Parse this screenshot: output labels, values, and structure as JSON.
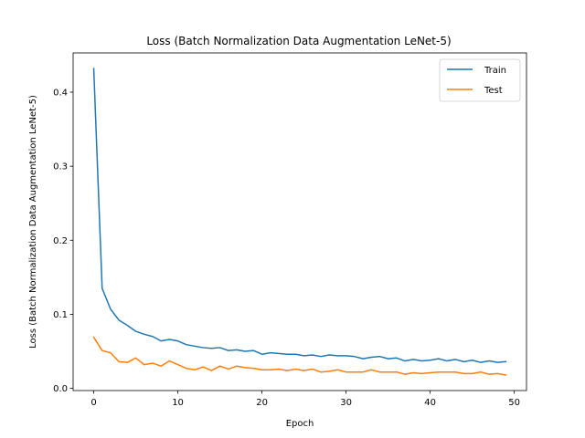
{
  "chart_data": {
    "type": "line",
    "title": "Loss (Batch Normalization Data Augmentation LeNet-5)",
    "xlabel": "Epoch",
    "ylabel": "Loss (Batch Normalization Data Augmentation LeNet-5)",
    "xlim": [
      -2.45,
      51.45
    ],
    "ylim": [
      -0.003,
      0.453
    ],
    "xticks": [
      0,
      10,
      20,
      30,
      40,
      50
    ],
    "yticks": [
      0.0,
      0.1,
      0.2,
      0.3,
      0.4
    ],
    "grid": false,
    "legend_position": "top-right",
    "x": [
      0,
      1,
      2,
      3,
      4,
      5,
      6,
      7,
      8,
      9,
      10,
      11,
      12,
      13,
      14,
      15,
      16,
      17,
      18,
      19,
      20,
      21,
      22,
      23,
      24,
      25,
      26,
      27,
      28,
      29,
      30,
      31,
      32,
      33,
      34,
      35,
      36,
      37,
      38,
      39,
      40,
      41,
      42,
      43,
      44,
      45,
      46,
      47,
      48,
      49
    ],
    "series": [
      {
        "name": "Train",
        "color": "#1f77b4",
        "values": [
          0.432,
          0.135,
          0.107,
          0.092,
          0.085,
          0.077,
          0.073,
          0.07,
          0.064,
          0.066,
          0.064,
          0.059,
          0.057,
          0.055,
          0.054,
          0.055,
          0.051,
          0.052,
          0.05,
          0.051,
          0.046,
          0.048,
          0.047,
          0.046,
          0.046,
          0.044,
          0.045,
          0.043,
          0.045,
          0.044,
          0.044,
          0.043,
          0.04,
          0.042,
          0.043,
          0.04,
          0.041,
          0.037,
          0.039,
          0.037,
          0.038,
          0.04,
          0.037,
          0.039,
          0.036,
          0.038,
          0.035,
          0.037,
          0.035,
          0.036
        ]
      },
      {
        "name": "Test",
        "color": "#ff7f0e",
        "values": [
          0.069,
          0.051,
          0.048,
          0.036,
          0.035,
          0.041,
          0.032,
          0.034,
          0.03,
          0.037,
          0.032,
          0.027,
          0.025,
          0.029,
          0.024,
          0.03,
          0.026,
          0.03,
          0.028,
          0.027,
          0.025,
          0.025,
          0.026,
          0.024,
          0.026,
          0.024,
          0.026,
          0.022,
          0.023,
          0.025,
          0.022,
          0.022,
          0.022,
          0.025,
          0.022,
          0.022,
          0.022,
          0.019,
          0.021,
          0.02,
          0.021,
          0.022,
          0.022,
          0.022,
          0.02,
          0.02,
          0.022,
          0.019,
          0.02,
          0.018
        ]
      }
    ]
  }
}
